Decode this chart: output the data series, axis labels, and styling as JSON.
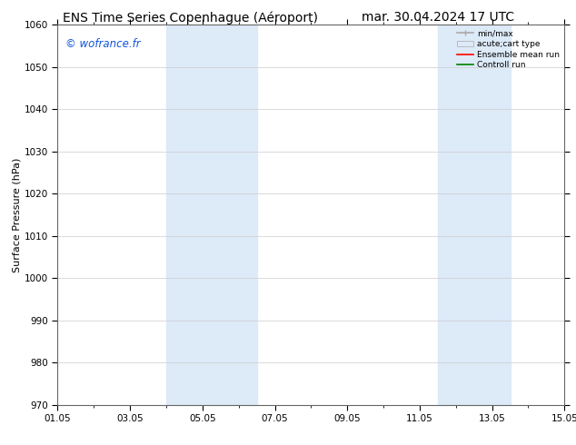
{
  "title_left": "ENS Time Series Copenhague (Aéroport)",
  "title_right": "mar. 30.04.2024 17 UTC",
  "ylabel": "Surface Pressure (hPa)",
  "ylim": [
    970,
    1060
  ],
  "yticks": [
    970,
    980,
    990,
    1000,
    1010,
    1020,
    1030,
    1040,
    1050,
    1060
  ],
  "xtick_labels": [
    "01.05",
    "03.05",
    "05.05",
    "07.05",
    "09.05",
    "11.05",
    "13.05",
    "15.05"
  ],
  "xtick_positions": [
    0,
    2,
    4,
    6,
    8,
    10,
    12,
    14
  ],
  "bg_bands": [
    {
      "x_start": 3,
      "x_end": 5.5,
      "color": "#ddeaf8"
    },
    {
      "x_start": 10.5,
      "x_end": 12.5,
      "color": "#ddeaf8"
    }
  ],
  "watermark_text": "© wofrance.fr",
  "watermark_color": "#1155dd",
  "bg_color": "#ffffff",
  "grid_color": "#cccccc",
  "title_fontsize": 10,
  "axis_label_fontsize": 8,
  "tick_fontsize": 7.5
}
